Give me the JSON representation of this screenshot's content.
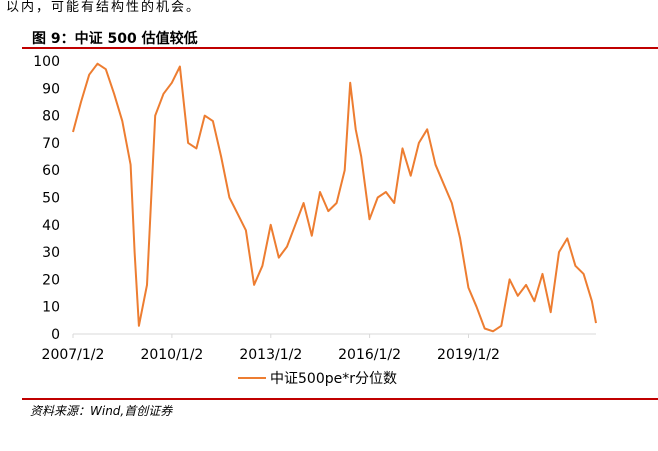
{
  "header": {
    "intro_text": "以内，可能有结构性的机会。",
    "figure_title": "图 9：中证 500 估值较低"
  },
  "footer": {
    "source": "资料来源：Wind,首创证券"
  },
  "colors": {
    "series": "#ed7d31",
    "rule": "#c00000",
    "axis": "#d9d9d9"
  },
  "chart_data": {
    "type": "line",
    "title": "",
    "xlabel": "",
    "ylabel": "",
    "ylim": [
      0,
      100
    ],
    "y_ticks": [
      "0",
      "10",
      "20",
      "30",
      "40",
      "50",
      "60",
      "70",
      "80",
      "90",
      "100"
    ],
    "x_ticks": [
      "2007/1/2",
      "2010/1/2",
      "2013/1/2",
      "2016/1/2",
      "2019/1/2"
    ],
    "grid": false,
    "legend_position": "bottom",
    "series": [
      {
        "name": "中证500pe*r分位数",
        "x": [
          "2007-01-02",
          "2007-04-01",
          "2007-07-01",
          "2007-10-01",
          "2008-01-01",
          "2008-04-01",
          "2008-07-01",
          "2008-10-01",
          "2008-11-15",
          "2009-01-01",
          "2009-04-01",
          "2009-07-01",
          "2009-10-01",
          "2010-01-01",
          "2010-04-01",
          "2010-07-01",
          "2010-10-01",
          "2011-01-01",
          "2011-04-01",
          "2011-07-01",
          "2011-10-01",
          "2012-01-01",
          "2012-04-01",
          "2012-07-01",
          "2012-10-01",
          "2013-01-01",
          "2013-04-01",
          "2013-07-01",
          "2013-10-01",
          "2014-01-01",
          "2014-04-01",
          "2014-07-01",
          "2014-10-01",
          "2015-01-01",
          "2015-04-01",
          "2015-06-01",
          "2015-08-01",
          "2015-10-01",
          "2016-01-01",
          "2016-04-01",
          "2016-07-01",
          "2016-10-01",
          "2017-01-01",
          "2017-04-01",
          "2017-07-01",
          "2017-10-01",
          "2018-01-01",
          "2018-04-01",
          "2018-07-01",
          "2018-10-01",
          "2019-01-01",
          "2019-04-01",
          "2019-07-01",
          "2019-10-01",
          "2020-01-01",
          "2020-04-01",
          "2020-07-01",
          "2020-10-01",
          "2021-01-01",
          "2021-04-01",
          "2021-07-01",
          "2021-10-01",
          "2022-01-01",
          "2022-04-01",
          "2022-07-01",
          "2022-10-01",
          "2022-11-15"
        ],
        "values": [
          74,
          85,
          95,
          99,
          97,
          88,
          78,
          62,
          30,
          3,
          18,
          80,
          88,
          92,
          98,
          70,
          68,
          80,
          78,
          65,
          50,
          44,
          38,
          18,
          25,
          40,
          28,
          32,
          40,
          48,
          36,
          52,
          45,
          48,
          60,
          92,
          75,
          65,
          42,
          50,
          52,
          48,
          68,
          58,
          70,
          75,
          62,
          55,
          48,
          35,
          17,
          10,
          2,
          1,
          3,
          20,
          14,
          18,
          12,
          22,
          8,
          30,
          35,
          25,
          22,
          12,
          4
        ]
      }
    ]
  }
}
